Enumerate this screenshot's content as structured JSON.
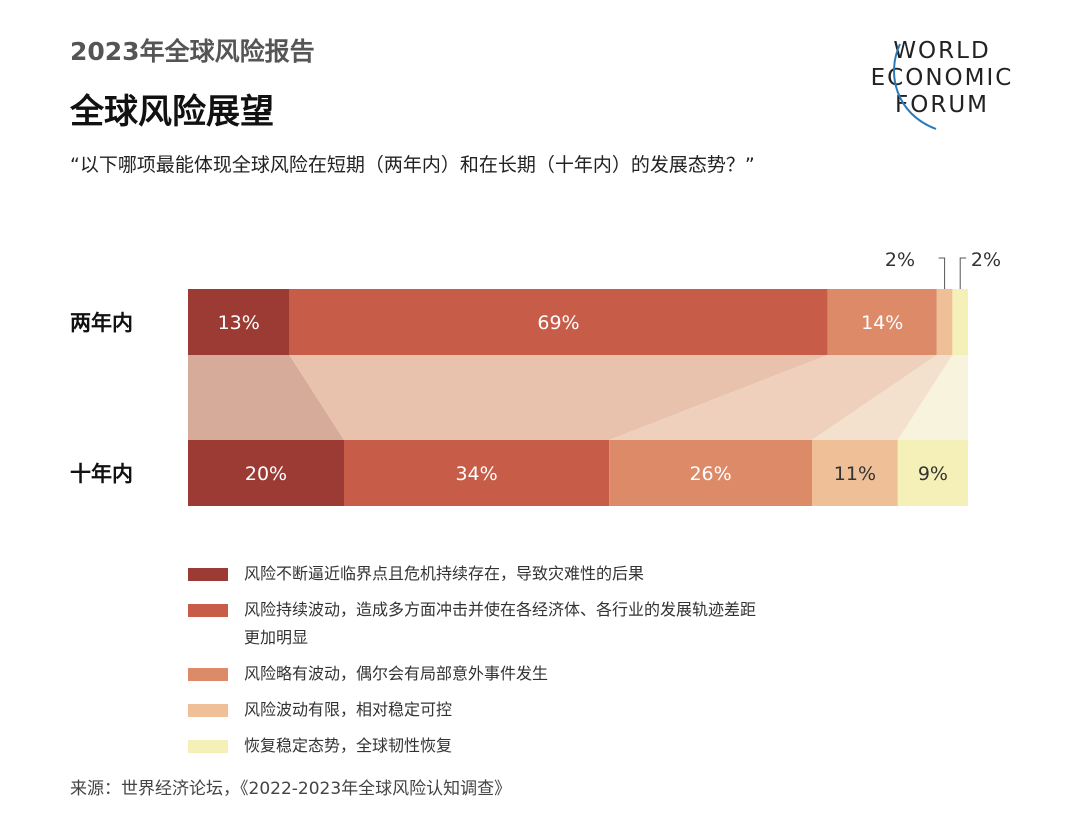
{
  "header": {
    "report_title": "2023年全球风险报告",
    "main_title": "全球风险展望",
    "question": "“以下哪项最能体现全球风险在短期（两年内）和在长期（十年内）的发展态势？”"
  },
  "logo": {
    "line1": "WORLD",
    "line2": "ECONOMIC",
    "line3": "FORUM"
  },
  "chart_data": {
    "type": "bar",
    "stacked": true,
    "orientation": "horizontal",
    "categories": [
      "两年内",
      "十年内"
    ],
    "series": [
      {
        "name": "风险不断逼近临界点且危机持续存在，导致灾难性的后果",
        "values": [
          13,
          20
        ],
        "color": "#9c3a34"
      },
      {
        "name": "风险持续波动，造成多方面冲击并使在各经济体、各行业的发展轨迹差距更加明显",
        "values": [
          69,
          34
        ],
        "color": "#c75d48"
      },
      {
        "name": "风险略有波动，偶尔会有局部意外事件发生",
        "values": [
          14,
          26
        ],
        "color": "#dd8a68"
      },
      {
        "name": "风险波动有限，相对稳定可控",
        "values": [
          2,
          11
        ],
        "color": "#efbf98"
      },
      {
        "name": "恢复稳定态势，全球韧性恢复",
        "values": [
          2,
          9
        ],
        "color": "#f5efb8"
      }
    ],
    "data_labels": [
      [
        "13%",
        "69%",
        "14%",
        "2%",
        "2%"
      ],
      [
        "20%",
        "34%",
        "26%",
        "11%",
        "9%"
      ]
    ],
    "flow_colors": [
      "#d6ab9a",
      "#e9c2ae",
      "#eed0bd",
      "#f3e1cd",
      "#f8f3dc"
    ],
    "label_colors": [
      "#ffffff",
      "#ffffff",
      "#ffffff",
      "#333333",
      "#333333"
    ]
  },
  "source": "来源：世界经济论坛，《2022-2023年全球风险认知调查》"
}
